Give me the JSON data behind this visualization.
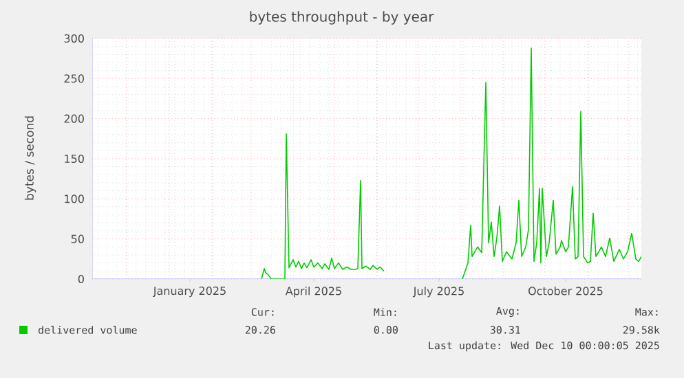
{
  "chart_data": {
    "type": "line",
    "title": "bytes throughput - by year",
    "ylabel": "bytes / second",
    "xlim": [
      "2024-11-06",
      "2025-12-10"
    ],
    "xticks": [
      {
        "value": "2025-01-16",
        "label": "January 2025"
      },
      {
        "value": "2025-04-16",
        "label": "April 2025"
      },
      {
        "value": "2025-07-16",
        "label": "July 2025"
      },
      {
        "value": "2025-10-16",
        "label": "October 2025"
      }
    ],
    "ylim": [
      0,
      300
    ],
    "yticks": [
      0,
      50,
      100,
      150,
      200,
      250,
      300
    ],
    "grid": true,
    "legend": "bottom",
    "x": [
      "2025-03-09",
      "2025-03-11",
      "2025-03-12",
      "2025-03-14",
      "2025-03-16",
      "2025-03-26",
      "2025-03-27",
      "2025-03-29",
      "2025-04-01",
      "2025-04-03",
      "2025-04-05",
      "2025-04-07",
      "2025-04-09",
      "2025-04-11",
      "2025-04-14",
      "2025-04-16",
      "2025-04-19",
      "2025-04-22",
      "2025-04-24",
      "2025-04-27",
      "2025-04-29",
      "2025-05-01",
      "2025-05-04",
      "2025-05-07",
      "2025-05-10",
      "2025-05-13",
      "2025-05-16",
      "2025-05-18",
      "2025-05-20",
      "2025-05-21",
      "2025-05-24",
      "2025-05-27",
      "2025-05-29",
      "2025-06-01",
      "2025-06-03",
      "2025-06-06",
      "2025-07-01",
      "2025-08-02",
      "2025-08-06",
      "2025-08-08",
      "2025-08-09",
      "2025-08-13",
      "2025-08-16",
      "2025-08-19",
      "2025-08-21",
      "2025-08-23",
      "2025-08-25",
      "2025-08-27",
      "2025-08-29",
      "2025-08-31",
      "2025-09-03",
      "2025-09-07",
      "2025-09-10",
      "2025-09-12",
      "2025-09-14",
      "2025-09-17",
      "2025-09-19",
      "2025-09-21",
      "2025-09-23",
      "2025-09-25",
      "2025-09-27",
      "2025-09-28",
      "2025-09-29",
      "2025-10-02",
      "2025-10-04",
      "2025-10-07",
      "2025-10-09",
      "2025-10-12",
      "2025-10-13",
      "2025-10-16",
      "2025-10-18",
      "2025-10-21",
      "2025-10-23",
      "2025-10-25",
      "2025-10-27",
      "2025-10-29",
      "2025-11-01",
      "2025-11-03",
      "2025-11-05",
      "2025-11-07",
      "2025-11-11",
      "2025-11-14",
      "2025-11-17",
      "2025-11-20",
      "2025-11-24",
      "2025-11-27",
      "2025-11-30",
      "2025-12-03",
      "2025-12-06",
      "2025-12-08",
      "2025-12-10"
    ],
    "series": [
      {
        "name": "delivered volume",
        "color": "#00cc00",
        "values": [
          0,
          13,
          8,
          5,
          0,
          0,
          181,
          14,
          24,
          15,
          22,
          13,
          20,
          14,
          24,
          15,
          20,
          13,
          19,
          12,
          26,
          13,
          20,
          12,
          15,
          12,
          12,
          13,
          123,
          13,
          16,
          12,
          17,
          12,
          15,
          10,
          null,
          0,
          20,
          67,
          28,
          40,
          33,
          245,
          45,
          71,
          28,
          51,
          91,
          22,
          34,
          25,
          45,
          98,
          28,
          40,
          62,
          288,
          22,
          45,
          113,
          20,
          113,
          28,
          45,
          98,
          31,
          40,
          48,
          34,
          40,
          115,
          25,
          28,
          209,
          28,
          20,
          22,
          82,
          28,
          40,
          28,
          51,
          22,
          37,
          25,
          34,
          57,
          25,
          22,
          28
        ]
      }
    ],
    "annotations": [
      "Cur:",
      "Min:",
      "Avg:",
      "Max:",
      "20.26",
      "0.00",
      "30.31",
      "29.58k",
      "Last update: Wed Dec 10 00:00:05 2025"
    ]
  }
}
